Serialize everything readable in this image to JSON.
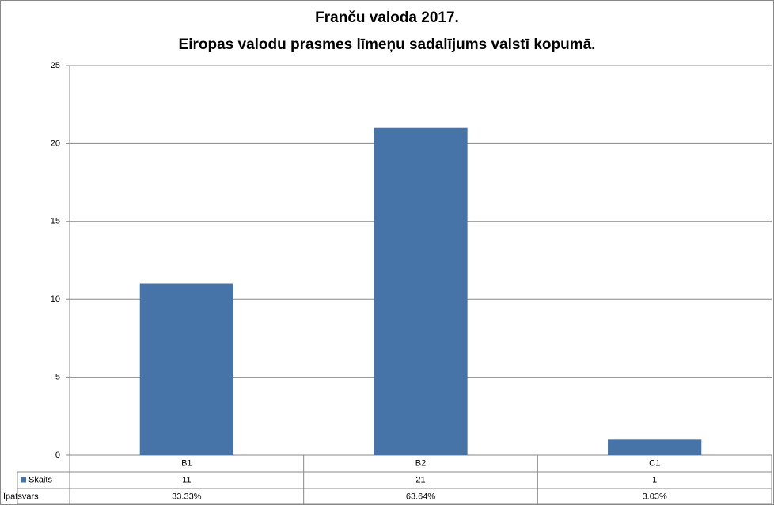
{
  "chart_data": {
    "type": "bar",
    "title": "Franču valoda 2017.",
    "subtitle": "Eiropas valodu prasmes līmeņu sadalījums valstī kopumā.",
    "categories": [
      "B1",
      "B2",
      "C1"
    ],
    "series": [
      {
        "name": "Skaits",
        "color": "#4674a9",
        "values": [
          11,
          21,
          1
        ]
      }
    ],
    "table_rows": [
      {
        "name": "Īpatsvars",
        "labels": [
          "33.33%",
          "63.64%",
          "3.03%"
        ]
      }
    ],
    "ylim": [
      0,
      25
    ],
    "yticks": [
      0,
      5,
      10,
      15,
      20,
      25
    ],
    "grid": true
  }
}
